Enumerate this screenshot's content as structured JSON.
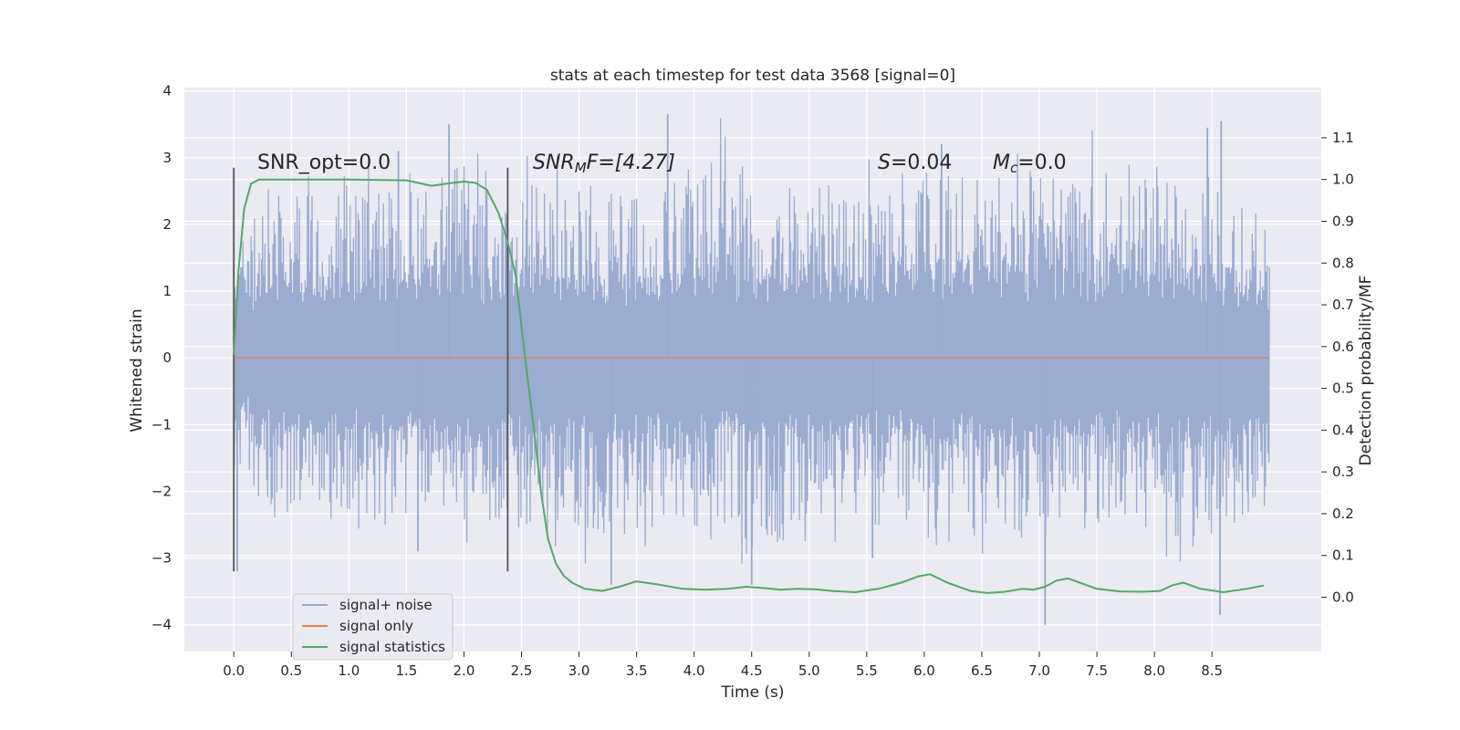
{
  "chart_data": {
    "type": "line",
    "title": "stats at each timestep for test data 3568 [signal=0]",
    "xlabel": "Time (s)",
    "ylabel": "Whitened strain",
    "y2label": "Detection probability/MF",
    "xlim": [
      -0.43,
      9.45
    ],
    "ylim": [
      -4.4,
      4.05
    ],
    "y2lim": [
      -0.13,
      1.22
    ],
    "x_ticks": [
      "0.0",
      "0.5",
      "1.0",
      "1.5",
      "2.0",
      "2.5",
      "3.0",
      "3.5",
      "4.0",
      "4.5",
      "5.0",
      "5.5",
      "6.0",
      "6.5",
      "7.0",
      "7.5",
      "8.0",
      "8.5"
    ],
    "y_ticks": [
      "4",
      "3",
      "2",
      "1",
      "0",
      "−1",
      "−2",
      "−3",
      "−4"
    ],
    "y2_ticks": [
      "1.1",
      "1.0",
      "0.9",
      "0.8",
      "0.7",
      "0.6",
      "0.5",
      "0.4",
      "0.3",
      "0.2",
      "0.1",
      "0.0"
    ],
    "grid": true,
    "legend_position": "lower-left",
    "annotations": {
      "snr_opt": "SNR_opt=0.0",
      "snr_mf_main": "SNR",
      "snr_mf_sub": "M",
      "snr_mf_rest": "F=[4.27]",
      "s_main": "S",
      "s_rest": "=0.04",
      "mc_main": "M",
      "mc_sub": "c",
      "mc_rest": "=0.0"
    },
    "markers": [
      {
        "x": 0.0,
        "y": [
          -3.2,
          2.85
        ]
      },
      {
        "x": 2.38,
        "y": [
          -3.2,
          2.85
        ]
      }
    ],
    "series": [
      {
        "name": "signal+ noise",
        "color": "#97a9cf",
        "envelope_x": [
          0.0,
          0.5,
          1.0,
          1.5,
          2.0,
          2.5,
          3.0,
          3.5,
          4.0,
          4.5,
          5.0,
          5.5,
          6.0,
          6.5,
          7.0,
          7.5,
          8.0,
          8.5,
          9.0
        ],
        "typical_upper": [
          1.6,
          2.2,
          2.1,
          2.3,
          2.4,
          2.1,
          2.3,
          2.2,
          2.5,
          2.2,
          2.3,
          2.2,
          2.4,
          2.3,
          2.4,
          2.2,
          2.4,
          2.3,
          1.8
        ],
        "typical_lower": [
          -1.5,
          -2.1,
          -2.2,
          -2.0,
          -2.3,
          -2.1,
          -2.3,
          -2.2,
          -2.1,
          -2.3,
          -2.2,
          -2.1,
          -2.2,
          -2.3,
          -2.2,
          -2.1,
          -2.2,
          -2.3,
          -1.9
        ],
        "peaks": [
          [
            1.87,
            3.5
          ],
          [
            3.77,
            3.65
          ],
          [
            8.58,
            3.55
          ],
          [
            8.46,
            3.45
          ],
          [
            1.43,
            3.1
          ],
          [
            6.15,
            3.2
          ],
          [
            0.03,
            -3.2
          ],
          [
            3.28,
            -3.4
          ],
          [
            4.5,
            -3.4
          ],
          [
            7.05,
            -4.0
          ],
          [
            8.57,
            -3.85
          ],
          [
            5.55,
            -3.0
          ],
          [
            1.6,
            -2.9
          ]
        ]
      },
      {
        "name": "signal only",
        "color": "#dd8452",
        "x": [
          0.0,
          9.0
        ],
        "y": [
          0.0,
          0.0
        ]
      },
      {
        "name": "signal statistics",
        "color": "#55a868",
        "axis": "right",
        "x": [
          0.0,
          0.04,
          0.09,
          0.15,
          0.22,
          0.3,
          0.5,
          1.0,
          1.5,
          1.72,
          1.85,
          2.0,
          2.1,
          2.2,
          2.3,
          2.38,
          2.45,
          2.52,
          2.6,
          2.67,
          2.73,
          2.8,
          2.87,
          2.95,
          3.05,
          3.2,
          3.35,
          3.5,
          3.7,
          3.9,
          4.1,
          4.3,
          4.45,
          4.6,
          4.75,
          4.9,
          5.05,
          5.2,
          5.4,
          5.6,
          5.8,
          5.95,
          6.05,
          6.2,
          6.4,
          6.55,
          6.7,
          6.85,
          6.95,
          7.05,
          7.15,
          7.25,
          7.35,
          7.5,
          7.7,
          7.9,
          8.05,
          8.15,
          8.25,
          8.4,
          8.6,
          8.8,
          8.95
        ],
        "y": [
          0.58,
          0.78,
          0.93,
          0.99,
          1.0,
          1.0,
          1.0,
          1.0,
          0.998,
          0.985,
          0.99,
          0.995,
          0.992,
          0.975,
          0.92,
          0.85,
          0.77,
          0.6,
          0.42,
          0.25,
          0.14,
          0.08,
          0.05,
          0.033,
          0.02,
          0.015,
          0.025,
          0.038,
          0.03,
          0.02,
          0.018,
          0.02,
          0.025,
          0.022,
          0.018,
          0.02,
          0.019,
          0.015,
          0.012,
          0.02,
          0.035,
          0.05,
          0.055,
          0.035,
          0.015,
          0.01,
          0.013,
          0.02,
          0.018,
          0.025,
          0.04,
          0.045,
          0.035,
          0.02,
          0.014,
          0.013,
          0.015,
          0.028,
          0.035,
          0.02,
          0.012,
          0.02,
          0.028
        ]
      }
    ]
  }
}
